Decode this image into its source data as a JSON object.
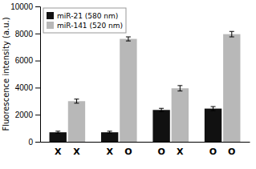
{
  "chart_data": {
    "type": "bar",
    "y_label": "Fluorescence intensity (a.u.)",
    "categories": [
      [
        "X",
        "X"
      ],
      [
        "X",
        "O"
      ],
      [
        "O",
        "X"
      ],
      [
        "O",
        "O"
      ]
    ],
    "series": [
      {
        "name": "miR-21 (580 nm)",
        "color": "#111111",
        "values": [
          700,
          700,
          2350,
          2450
        ],
        "errors": [
          80,
          80,
          120,
          150
        ]
      },
      {
        "name": "miR-141 (520 nm)",
        "color": "#b8b8b8",
        "values": [
          3000,
          7600,
          3950,
          7950
        ],
        "errors": [
          150,
          150,
          200,
          200
        ]
      }
    ],
    "ylim": [
      0,
      10000
    ],
    "yticks": [
      0,
      2000,
      4000,
      6000,
      8000,
      10000
    ],
    "grid": false,
    "legend": "upper left"
  }
}
